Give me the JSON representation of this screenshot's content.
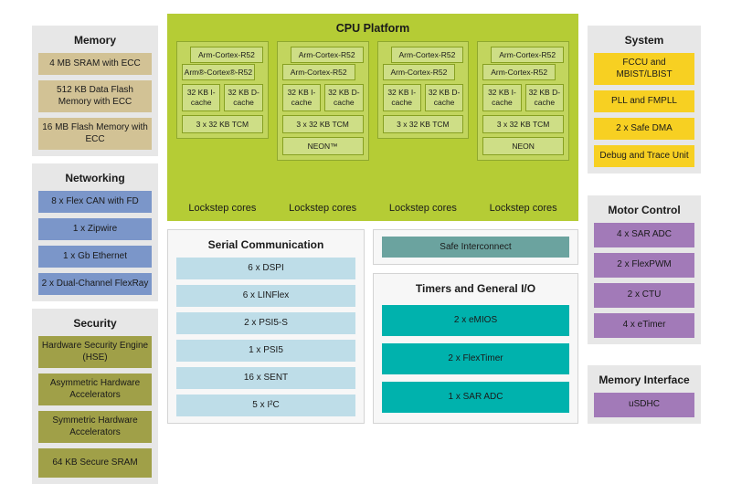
{
  "memory": {
    "title": "Memory",
    "items": [
      "4 MB SRAM with ECC",
      "512 KB Data Flash Memory with ECC",
      "16 MB Flash Memory with ECC"
    ]
  },
  "networking": {
    "title": "Networking",
    "items": [
      "8 x Flex CAN with FD",
      "1 x Zipwire",
      "1 x Gb Ethernet",
      "2 x Dual-Channel FlexRay"
    ]
  },
  "security": {
    "title": "Security",
    "items": [
      "Hardware Security Engine (HSE)",
      "Asymmetric Hardware Accelerators",
      "Symmetric Hardware Accelerators",
      "64 KB Secure SRAM"
    ]
  },
  "cpu_platform": {
    "title": "CPU Platform",
    "lockstep_label": "Lockstep cores",
    "clusters": [
      {
        "core_back": "Arm-Cortex-R52",
        "core_front": "Arm®-Cortex®-R52",
        "icache": "32 KB I-cache",
        "dcache": "32 KB D-cache",
        "tcm": "3 x 32 KB TCM"
      },
      {
        "core_back": "Arm-Cortex-R52",
        "core_front": "Arm-Cortex-R52",
        "icache": "32 KB I-cache",
        "dcache": "32 KB D-cache",
        "tcm": "3 x 32 KB TCM",
        "neon": "NEON™"
      },
      {
        "core_back": "Arm-Cortex-R52",
        "core_front": "Arm-Cortex-R52",
        "icache": "32 KB I-cache",
        "dcache": "32 KB D-cache",
        "tcm": "3 x 32 KB TCM"
      },
      {
        "core_back": "Arm-Cortex-R52",
        "core_front": "Arm-Cortex-R52",
        "icache": "32 KB I-cache",
        "dcache": "32 KB D-cache",
        "tcm": "3 x 32 KB TCM",
        "neon": "NEON"
      }
    ]
  },
  "serial": {
    "title": "Serial Communication",
    "items": [
      "6 x DSPI",
      "6 x LINFlex",
      "2 x PSI5-S",
      "1 x PSI5",
      "16 x SENT",
      "5 x I²C"
    ]
  },
  "safe_interconnect": {
    "label": "Safe Interconnect"
  },
  "timers": {
    "title": "Timers and General I/O",
    "items": [
      "2 x eMIOS",
      "2 x FlexTimer",
      "1 x SAR ADC"
    ]
  },
  "system": {
    "title": "System",
    "items": [
      "FCCU and MBIST/LBIST",
      "PLL and FMPLL",
      "2 x Safe DMA",
      "Debug and Trace Unit"
    ]
  },
  "motor_control": {
    "title": "Motor Control",
    "items": [
      "4 x SAR ADC",
      "2 x FlexPWM",
      "2 x CTU",
      "4 x eTimer"
    ]
  },
  "memory_interface": {
    "title": "Memory Interface",
    "items": [
      "uSDHC"
    ]
  },
  "colors": {
    "panel_bg": "#e7e7e7",
    "memory_item": "#d2c295",
    "networking_item": "#7b96c9",
    "security_item": "#a0a048",
    "cpu_platform_bg": "#b5cc35",
    "cpu_cluster_bg": "#c2d55e",
    "cpu_cluster_border": "#8fa82e",
    "cpu_box_bg": "#cede86",
    "cpu_box_border": "#87a021",
    "serial_item": "#bedde8",
    "safe_interconnect": "#6ba39f",
    "timers_item": "#00b2ad",
    "system_item": "#f7d022",
    "motor_item": "#a27ab8"
  }
}
